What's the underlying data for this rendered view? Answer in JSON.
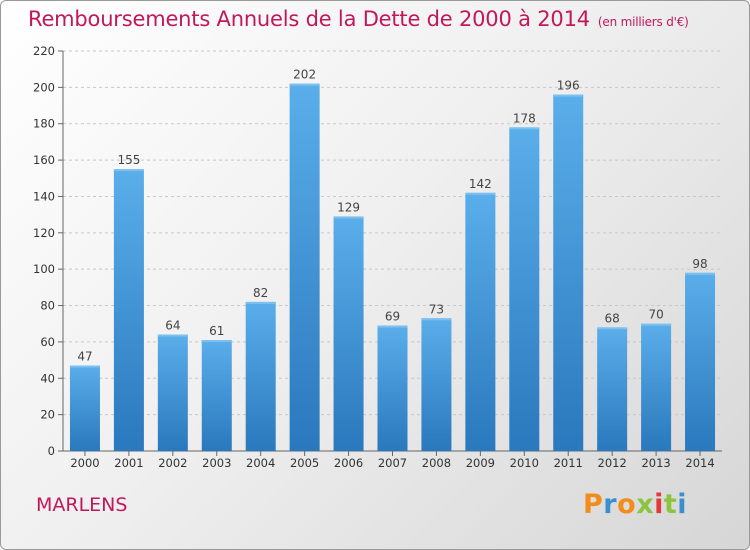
{
  "chart_data": {
    "type": "bar",
    "title": "Remboursements Annuels de la Dette de 2000 à 2014",
    "unit_note": "(en milliers d'€)",
    "categories": [
      "2000",
      "2001",
      "2002",
      "2003",
      "2004",
      "2005",
      "2006",
      "2007",
      "2008",
      "2009",
      "2010",
      "2011",
      "2012",
      "2013",
      "2014"
    ],
    "values": [
      47,
      155,
      64,
      61,
      82,
      202,
      129,
      69,
      73,
      142,
      178,
      196,
      68,
      70,
      98
    ],
    "ylim": [
      0,
      220
    ],
    "yticks": [
      0,
      20,
      40,
      60,
      80,
      100,
      120,
      140,
      160,
      180,
      200,
      220
    ],
    "xlabel": "",
    "ylabel": "",
    "grid": true,
    "bar_color": "#3f94d6"
  },
  "place_name": "MARLENS",
  "logo": {
    "letters": [
      "P",
      "r",
      "o",
      "x",
      "i",
      "t",
      "i"
    ],
    "colors": [
      "#f28c1a",
      "#3a8fd0",
      "#f28c1a",
      "#8bc43f",
      "#e23a3a",
      "#8bc43f",
      "#3a8fd0"
    ]
  }
}
